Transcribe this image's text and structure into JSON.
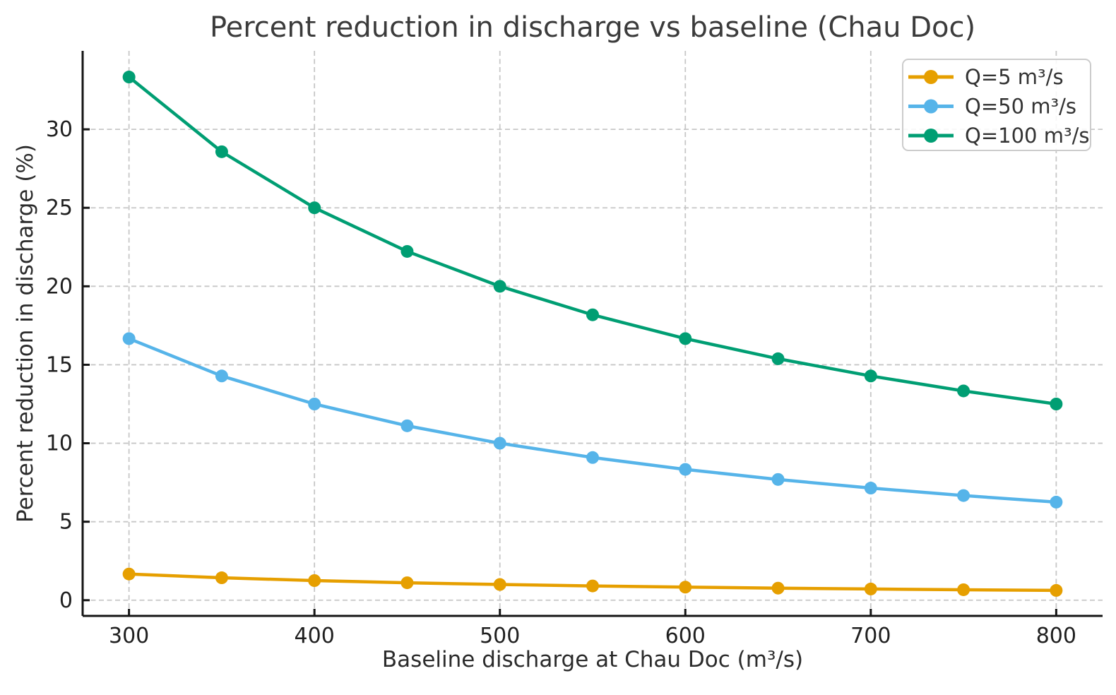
{
  "figure": {
    "background": "#ffffff"
  },
  "chart_data": {
    "type": "line",
    "title": "Percent reduction in discharge vs baseline (Chau Doc)",
    "xlabel": "Baseline discharge at Chau Doc (m³/s)",
    "ylabel": "Percent reduction in discharge (%)",
    "x": [
      300,
      350,
      400,
      450,
      500,
      550,
      600,
      650,
      700,
      750,
      800
    ],
    "xticks": [
      300,
      400,
      500,
      600,
      700,
      800
    ],
    "yticks": [
      0,
      5,
      10,
      15,
      20,
      25,
      30
    ],
    "xlim": [
      275,
      825
    ],
    "ylim": [
      -1,
      35
    ],
    "grid": true,
    "grid_style": "dashed",
    "legend_position": "upper right",
    "series": [
      {
        "name": "Q=5 m³/s",
        "color": "#E69F00",
        "values": [
          1.667,
          1.429,
          1.25,
          1.111,
          1.0,
          0.909,
          0.833,
          0.769,
          0.714,
          0.667,
          0.625
        ]
      },
      {
        "name": "Q=50 m³/s",
        "color": "#56B4E9",
        "values": [
          16.667,
          14.286,
          12.5,
          11.111,
          10.0,
          9.091,
          8.333,
          7.692,
          7.143,
          6.667,
          6.25
        ]
      },
      {
        "name": "Q=100 m³/s",
        "color": "#009E73",
        "values": [
          33.333,
          28.571,
          25.0,
          22.222,
          20.0,
          18.182,
          16.667,
          15.385,
          14.286,
          13.333,
          12.5
        ]
      }
    ]
  }
}
